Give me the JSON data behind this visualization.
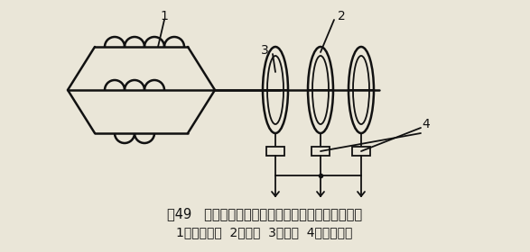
{
  "bg_color": "#eae6d8",
  "line_color": "#111111",
  "line_width": 1.8,
  "lw_thin": 1.3,
  "title_text": "图49   绕线式电机转子线组与附加电阻的连接示意图",
  "subtitle_text": "1．转子绕组  2．滑环  3．电刷  4．附加电阻",
  "label1": "1",
  "label2": "2",
  "label3": "3",
  "label4": "4",
  "font_size_title": 10.5,
  "font_size_subtitle": 10,
  "font_size_label": 10
}
